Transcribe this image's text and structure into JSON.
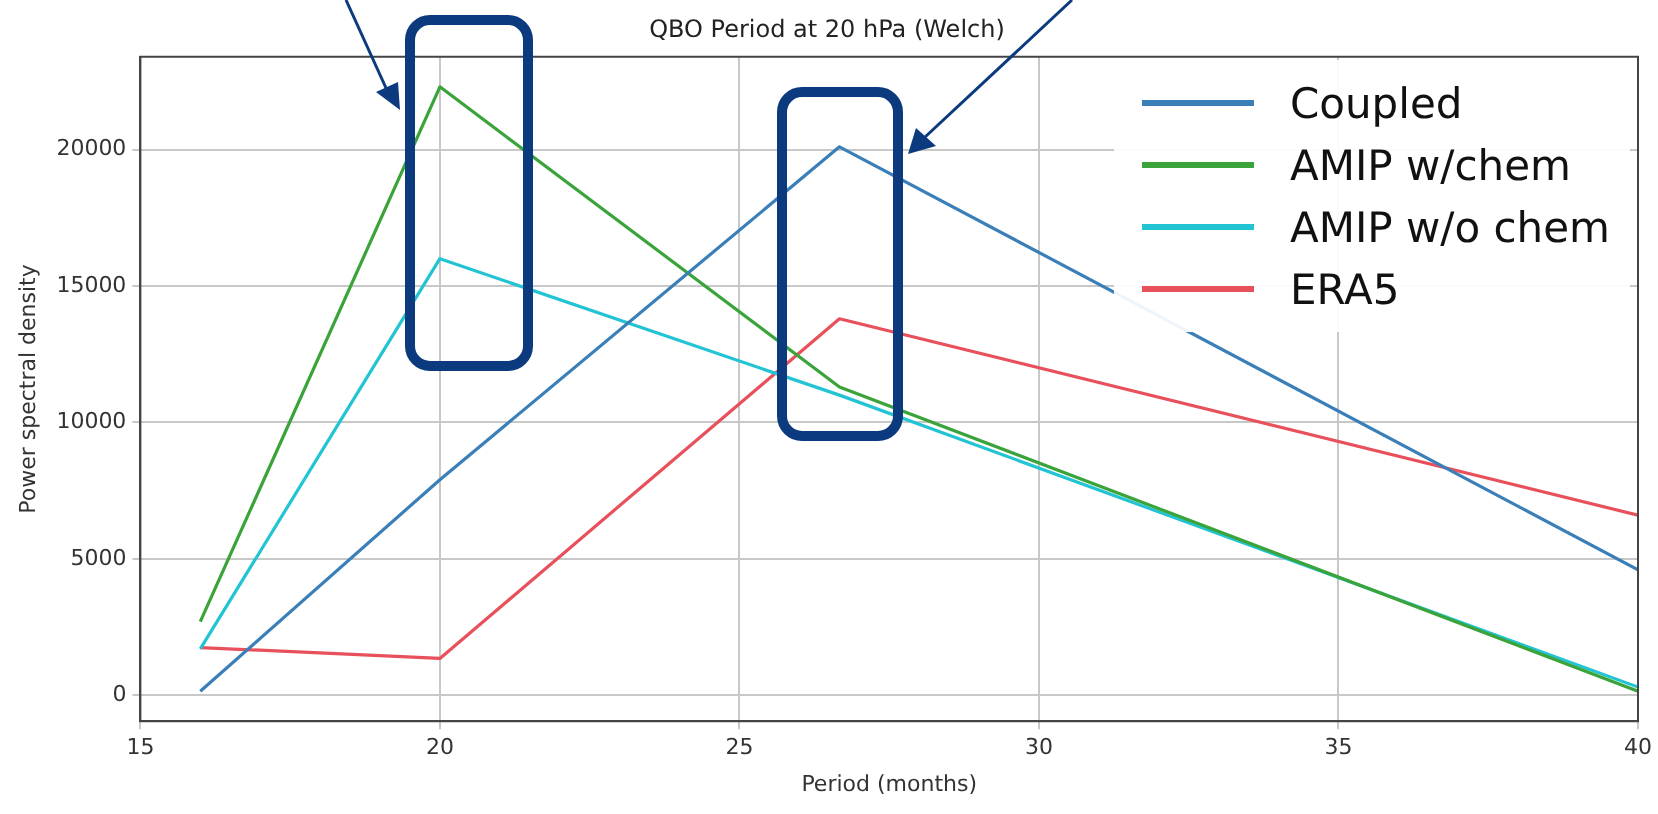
{
  "chart_data": {
    "type": "line",
    "title": "QBO Period at 20 hPa (Welch)",
    "xlabel": "Period (months)",
    "ylabel": "Power spectral density",
    "x": [
      16,
      20,
      26.67,
      40
    ],
    "series": [
      {
        "name": "Coupled",
        "color": "#3a7fb8",
        "values": [
          150,
          7900,
          20100,
          4600
        ]
      },
      {
        "name": "AMIP w/chem",
        "color": "#3aa33a",
        "values": [
          2700,
          22300,
          11300,
          150
        ]
      },
      {
        "name": "AMIP w/o chem",
        "color": "#22c4d4",
        "values": [
          1700,
          16000,
          11000,
          300
        ]
      },
      {
        "name": "ERA5",
        "color": "#e8505b",
        "values": [
          1750,
          1350,
          13800,
          6600
        ]
      }
    ],
    "xlim": [
      15,
      40
    ],
    "xticks": [
      15,
      20,
      25,
      30,
      35,
      40
    ],
    "ylim": [
      -950,
      23400
    ],
    "yticks": [
      0,
      5000,
      10000,
      15000,
      20000
    ],
    "grid": true,
    "legend": "top right",
    "marker": "none",
    "line_style": "solid"
  }
}
